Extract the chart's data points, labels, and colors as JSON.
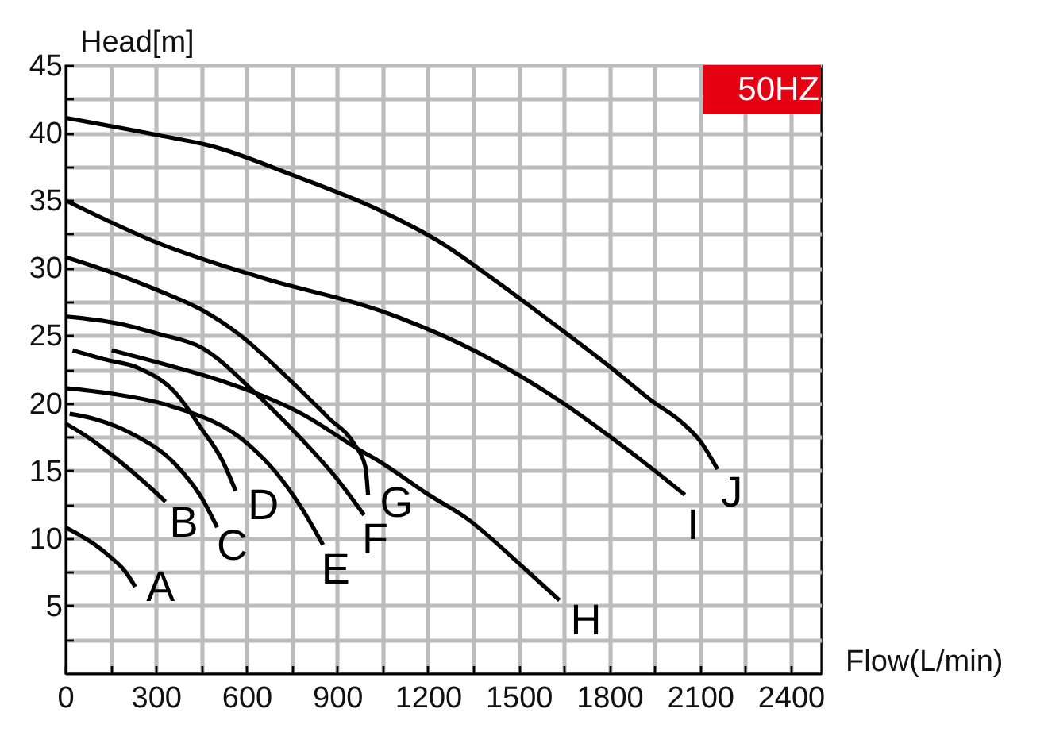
{
  "chart_data": {
    "type": "line",
    "xlabel": "Flow(L/min)",
    "ylabel": "Head[m]",
    "annotations": [
      "50HZ"
    ],
    "xlim": [
      0,
      2500
    ],
    "ylim": [
      0,
      45
    ],
    "xticks": [
      0,
      {
        "value": 150,
        "label": null
      },
      300,
      {
        "value": 450,
        "label": null
      },
      600,
      {
        "value": 750,
        "label": null
      },
      900,
      {
        "value": 1050,
        "label": null
      },
      1200,
      {
        "value": 1350,
        "label": null
      },
      1500,
      {
        "value": 1650,
        "label": null
      },
      1800,
      {
        "value": 1950,
        "label": null
      },
      2100,
      {
        "value": 2250,
        "label": null
      },
      2400
    ],
    "yticks": [
      {
        "value": 2.5,
        "label": null
      },
      5,
      {
        "value": 7.5,
        "label": null
      },
      10,
      {
        "value": 12.5,
        "label": null
      },
      15,
      {
        "value": 17.5,
        "label": null
      },
      20,
      {
        "value": 22.5,
        "label": null
      },
      25,
      {
        "value": 27.5,
        "label": null
      },
      30,
      {
        "value": 32.5,
        "label": null
      },
      35,
      {
        "value": 37.5,
        "label": null
      },
      40,
      {
        "value": 42.5,
        "label": null
      },
      45
    ],
    "grid": true,
    "series": [
      {
        "name": "A",
        "color": "#000000",
        "x": [
          0,
          50,
          100,
          150,
          200,
          232
        ],
        "values": [
          10.8,
          10.2,
          9.5,
          8.6,
          7.5,
          6.4
        ]
      },
      {
        "name": "B",
        "color": "#000000",
        "x": [
          0,
          80,
          163,
          259,
          332
        ],
        "values": [
          18.5,
          17.4,
          16.0,
          14.2,
          12.7
        ]
      },
      {
        "name": "C",
        "color": "#000000",
        "x": [
          15,
          100,
          223,
          363,
          451,
          503
        ],
        "values": [
          19.2,
          18.8,
          17.7,
          15.5,
          13.0,
          10.8
        ]
      },
      {
        "name": "D",
        "color": "#000000",
        "x": [
          25,
          136,
          241,
          363,
          451,
          521,
          564
        ],
        "values": [
          23.9,
          23.2,
          22.6,
          20.8,
          18.1,
          15.7,
          13.5
        ]
      },
      {
        "name": "E",
        "color": "#000000",
        "x": [
          0,
          150,
          346,
          608,
          696,
          783,
          853
        ],
        "values": [
          21.1,
          20.7,
          19.8,
          16.9,
          14.9,
          12.2,
          9.5
        ]
      },
      {
        "name": "F",
        "color": "#000000",
        "x": [
          0,
          171,
          311,
          451,
          626,
          783,
          906,
          989
        ],
        "values": [
          26.4,
          25.9,
          25.1,
          24.1,
          20.8,
          17.3,
          14.2,
          11.7
        ]
      },
      {
        "name": "G",
        "color": "#000000",
        "x": [
          0,
          136,
          311,
          451,
          574,
          748,
          871,
          958,
          993,
          1002
        ],
        "values": [
          30.8,
          29.8,
          28.3,
          26.9,
          25.1,
          21.6,
          18.9,
          16.9,
          15.3,
          13.2
        ]
      },
      {
        "name": "H",
        "color": "#000000",
        "x": [
          154,
          340,
          521,
          783,
          976,
          1045,
          1203,
          1326,
          1517,
          1635
        ],
        "values": [
          23.9,
          22.8,
          21.6,
          19.2,
          16.5,
          15.6,
          13.2,
          11.5,
          7.8,
          5.4
        ]
      },
      {
        "name": "I",
        "color": "#000000",
        "x": [
          0,
          311,
          661,
          1046,
          1360,
          1640,
          1797,
          1944,
          2050
        ],
        "values": [
          35.0,
          31.8,
          29.2,
          26.8,
          23.8,
          20.1,
          17.6,
          15.1,
          13.2
        ]
      },
      {
        "name": "J",
        "color": "#000000",
        "x": [
          0,
          311,
          486,
          748,
          1046,
          1233,
          1420,
          1607,
          1795,
          1944,
          2038,
          2100,
          2158
        ],
        "values": [
          41.1,
          39.8,
          39.0,
          36.9,
          34.2,
          32.0,
          29.1,
          26.0,
          22.8,
          20.1,
          18.6,
          17.2,
          15.1
        ]
      }
    ]
  }
}
